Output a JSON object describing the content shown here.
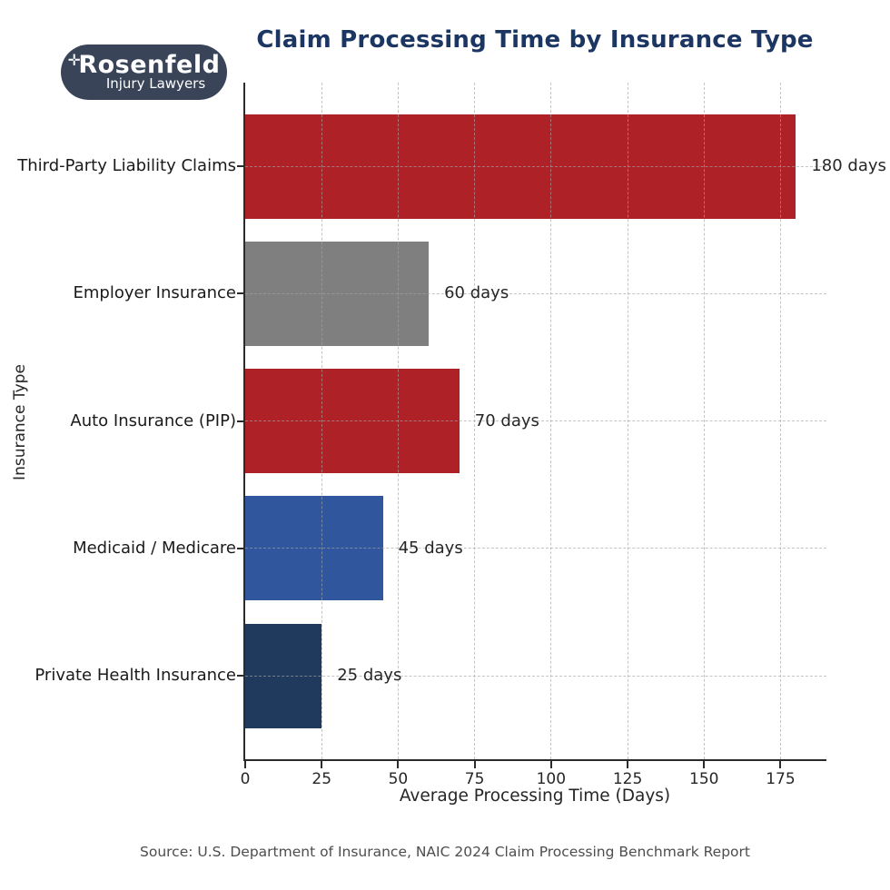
{
  "logo": {
    "plus_mark": "✛",
    "name": "Rosenfeld",
    "tagline": "Injury Lawyers",
    "background_color": "#3a4459",
    "text_color": "#ffffff"
  },
  "title": "Claim Processing Time by Insurance Type",
  "title_color": "#1c3663",
  "chart_data": {
    "type": "bar",
    "orientation": "horizontal",
    "categories": [
      "Third-Party Liability Claims",
      "Employer Insurance",
      "Auto Insurance (PIP)",
      "Medicaid / Medicare",
      "Private Health Insurance"
    ],
    "values": [
      180,
      60,
      70,
      45,
      25
    ],
    "value_labels": [
      "180 days",
      "60 days",
      "70 days",
      "45 days",
      "25 days"
    ],
    "bar_colors": [
      "#ae2127",
      "#7f7f7f",
      "#ae2127",
      "#30569d",
      "#1f3a5c"
    ],
    "xlabel": "Average Processing Time (Days)",
    "ylabel": "Insurance Type",
    "xlim": [
      0,
      190
    ],
    "xticks": [
      0,
      25,
      50,
      75,
      100,
      125,
      150,
      175
    ],
    "grid": "dashed",
    "legend": "none"
  },
  "source": "Source: U.S. Department of Insurance, NAIC 2024 Claim Processing Benchmark Report"
}
